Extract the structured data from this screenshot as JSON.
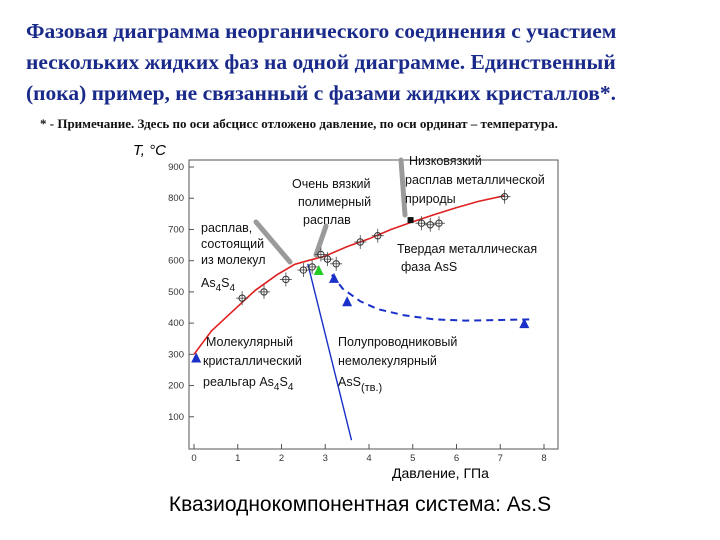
{
  "slide": {
    "title_lines": [
      "Фазовая диаграмма неорганического соединения с участием",
      "нескольких жидких фаз на одной диаграмме. Единственный",
      "(пока) пример, не связанный с фазами жидких кристаллов*."
    ],
    "note": "* - Примечание. Здесь по оси абсцисс отложено давление, по оси ординат – температура.",
    "caption": "Квазиоднокомпонентная система: As.S"
  },
  "colors": {
    "title": "#1a2a8a",
    "liquid_curve": "#e02020",
    "boundary": "#1a30c8",
    "triangle_green": "#22cc22",
    "pointer": "#909090"
  },
  "chart_data": {
    "type": "scatter",
    "xlabel": "Давление, ГПа",
    "ylabel": "T, °C",
    "xlim": [
      0,
      8.5
    ],
    "ylim": [
      0,
      950
    ],
    "xticks": [
      "0",
      "1",
      "2",
      "3",
      "4",
      "5",
      "6",
      "7",
      "8"
    ],
    "yticks": [
      "0",
      "100",
      "200",
      "300",
      "400",
      "500",
      "600",
      "700",
      "800",
      "900"
    ],
    "grid": false,
    "series": [
      {
        "style": "melting-curve",
        "x": [
          0.0,
          0.4,
          0.9,
          1.4,
          1.9,
          2.3,
          2.6,
          3.0,
          3.5,
          4.0,
          4.5,
          5.0,
          5.5,
          6.0,
          6.5,
          7.1
        ],
        "y": [
          300,
          375,
          440,
          505,
          555,
          588,
          600,
          615,
          645,
          670,
          700,
          725,
          748,
          770,
          790,
          808
        ]
      },
      {
        "style": "measured-points",
        "x": [
          1.1,
          1.6,
          2.1,
          2.5,
          2.7,
          2.9,
          3.05,
          3.25,
          3.8,
          4.2,
          5.2,
          5.4,
          5.6,
          7.1
        ],
        "y": [
          480,
          500,
          540,
          570,
          580,
          620,
          605,
          590,
          660,
          680,
          720,
          715,
          720,
          805
        ]
      },
      {
        "style": "solid-solid-boundary",
        "x": [
          2.6,
          3.6
        ],
        "y": [
          590,
          25
        ]
      },
      {
        "style": "liquid-liquid-boundary",
        "x": [
          3.15,
          3.4,
          3.8,
          4.2,
          4.8,
          5.5,
          6.2,
          7.0,
          7.7
        ],
        "y": [
          555,
          510,
          470,
          445,
          425,
          412,
          408,
          410,
          412
        ]
      },
      {
        "style": "blue-triangles",
        "x": [
          0.05,
          3.2,
          3.5,
          7.55
        ],
        "y": [
          290,
          545,
          470,
          400
        ]
      },
      {
        "style": "green-triangle",
        "x": [
          2.85
        ],
        "y": [
          570
        ]
      },
      {
        "style": "black-square",
        "x": [
          4.95
        ],
        "y": [
          730
        ]
      }
    ],
    "annotations": {
      "melt_molecular": [
        "расплав,",
        "состоящий",
        "из молекул",
        "As",
        "4",
        "S",
        "4"
      ],
      "viscous_polymer": [
        "Очень вязкий",
        "полимерный",
        "расплав"
      ],
      "metallic_melt": [
        "Низковязкий",
        "расплав металлической",
        "природы"
      ],
      "solid_metallic": [
        "Твердая металлическая",
        "фаза AsS"
      ],
      "molecular_crystal": [
        "Молекулярный",
        "кристаллический",
        "реальгар As",
        "4",
        "S",
        "4"
      ],
      "semiconductor": [
        "Полупроводниковый",
        "немолекулярный",
        "AsS",
        "(тв.)"
      ]
    }
  }
}
